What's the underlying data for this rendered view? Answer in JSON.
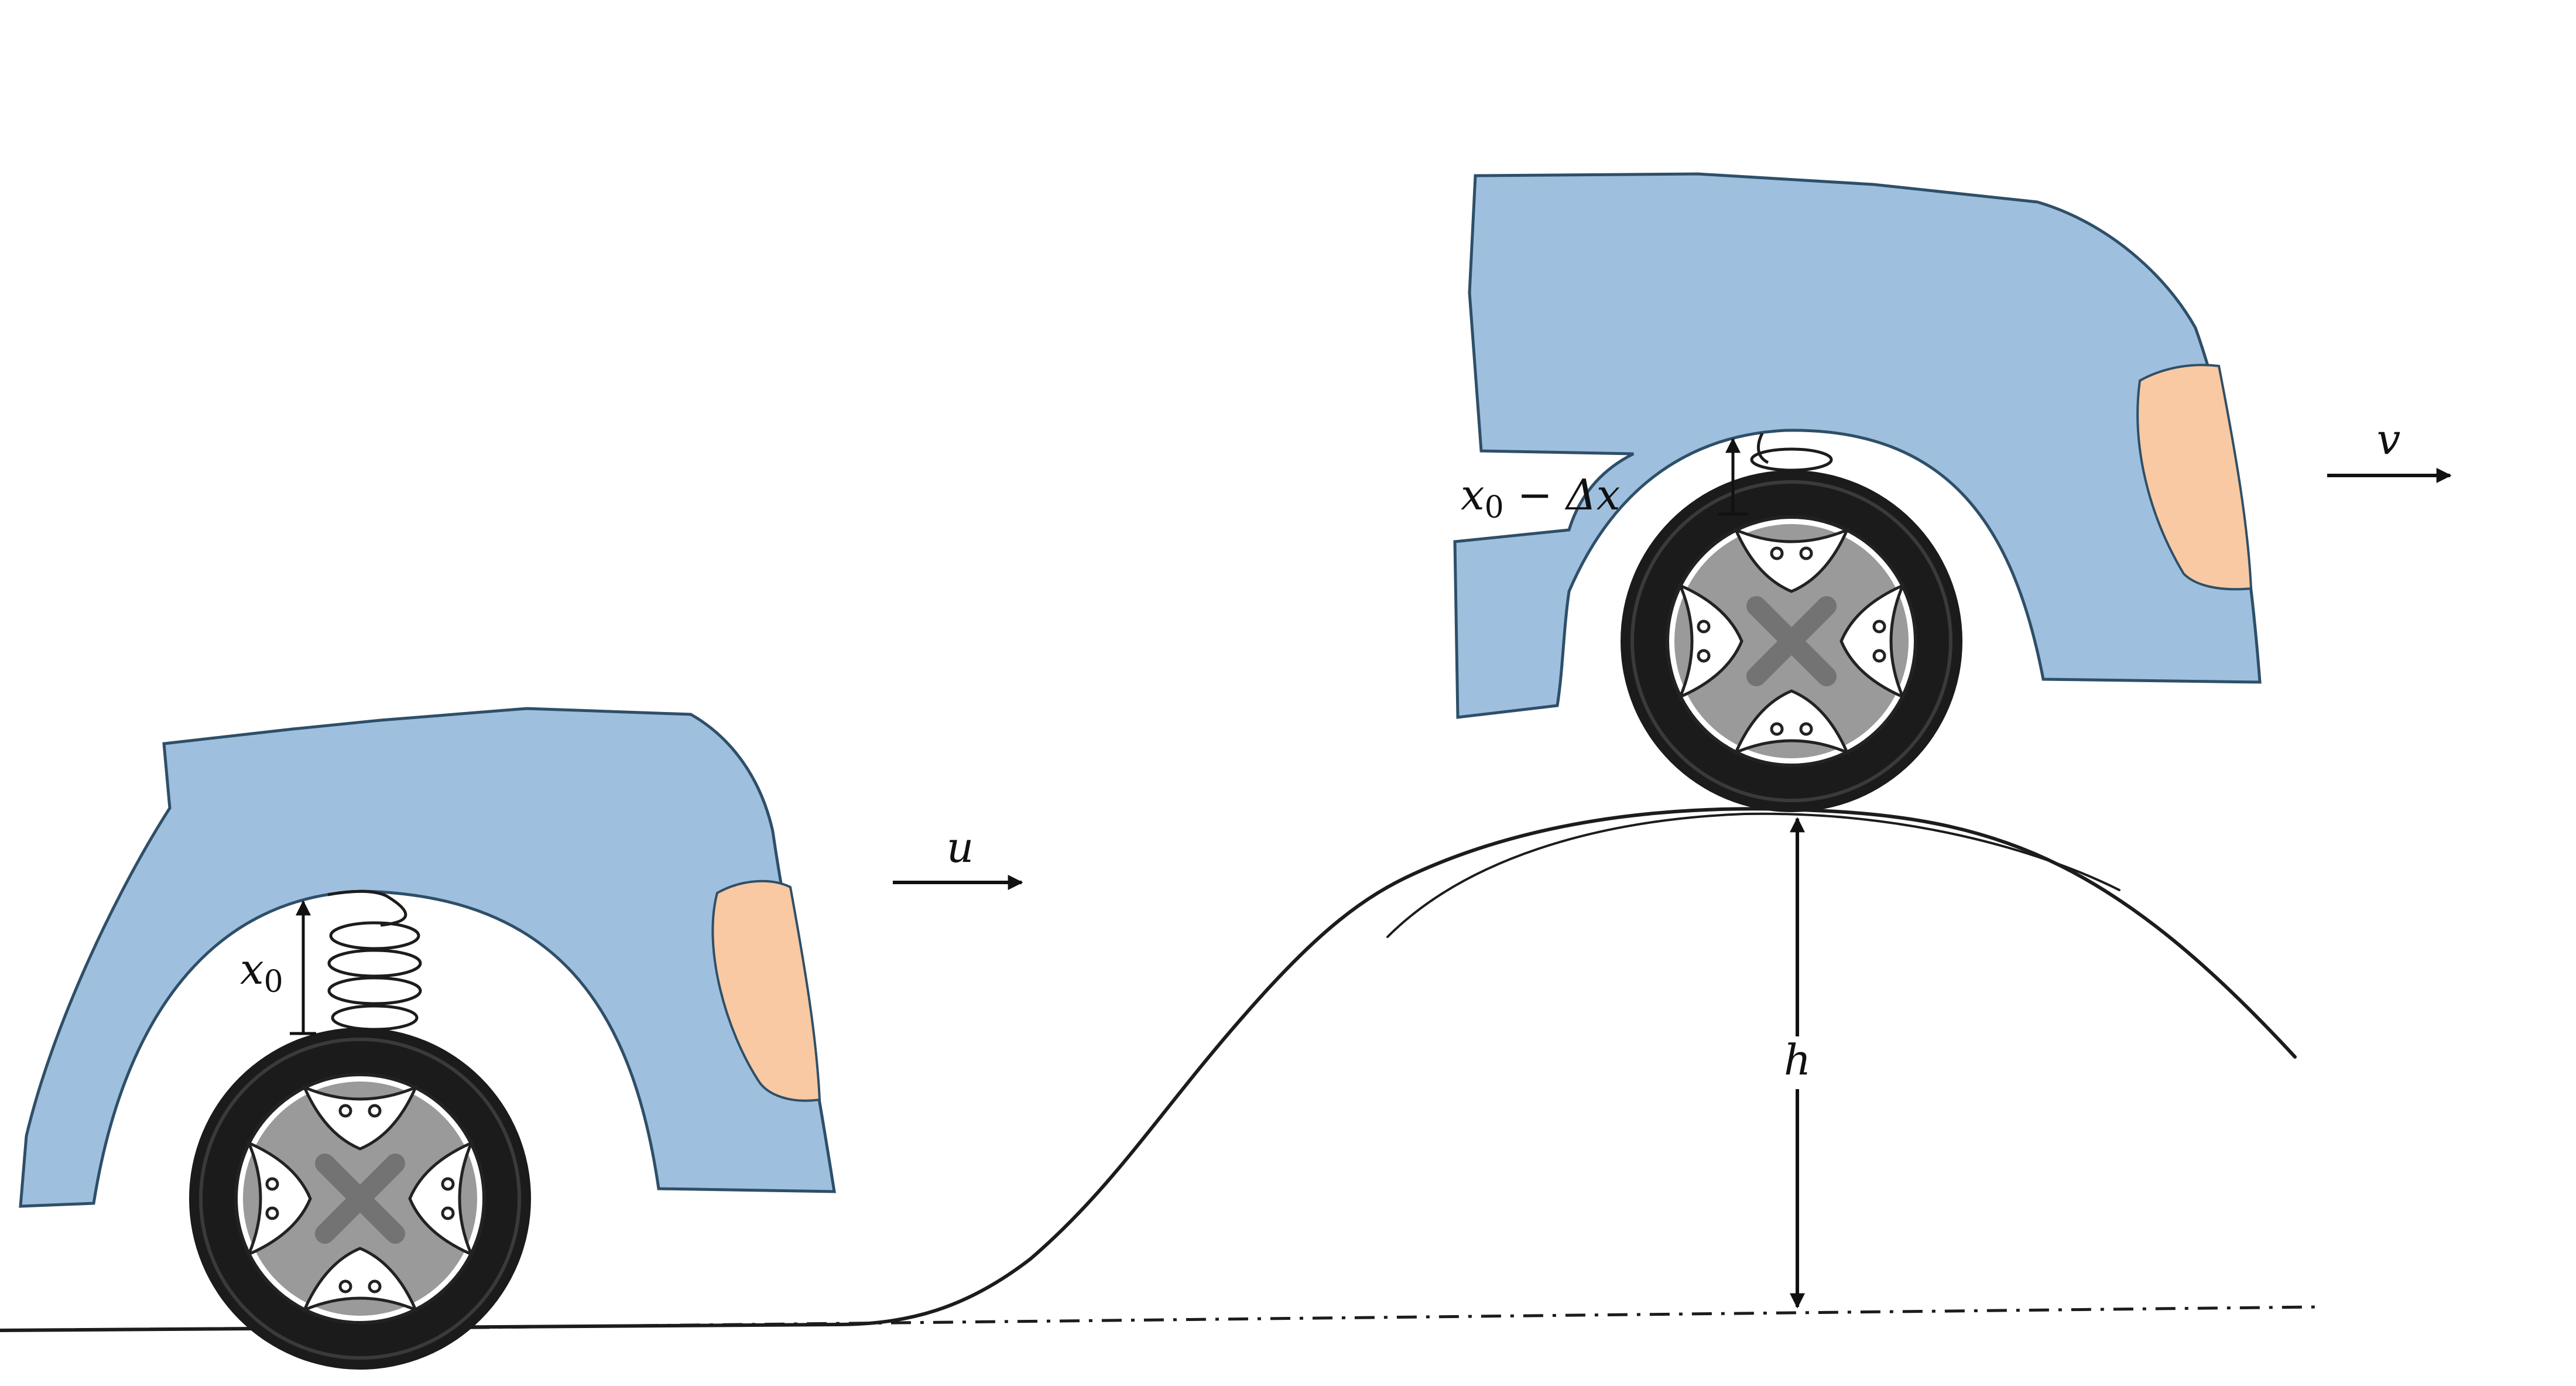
{
  "labels": {
    "x0_var": "x",
    "x0_sub": "0",
    "x0_delta_var": "x",
    "x0_delta_sub": "0",
    "x0_delta_rest": " − Δx",
    "u": "u",
    "v": "v",
    "h": "h"
  },
  "colors": {
    "body": "#9ec0de",
    "body_edge": "#2f4f68",
    "light": "#f8c9a2",
    "tire": "#1b1b1b",
    "rim": "#9a9a9a",
    "rim_dark": "#737373",
    "ink": "#1c1c1c"
  },
  "icons": [
    "spring-icon",
    "wheel-icon",
    "arrow-icon"
  ]
}
